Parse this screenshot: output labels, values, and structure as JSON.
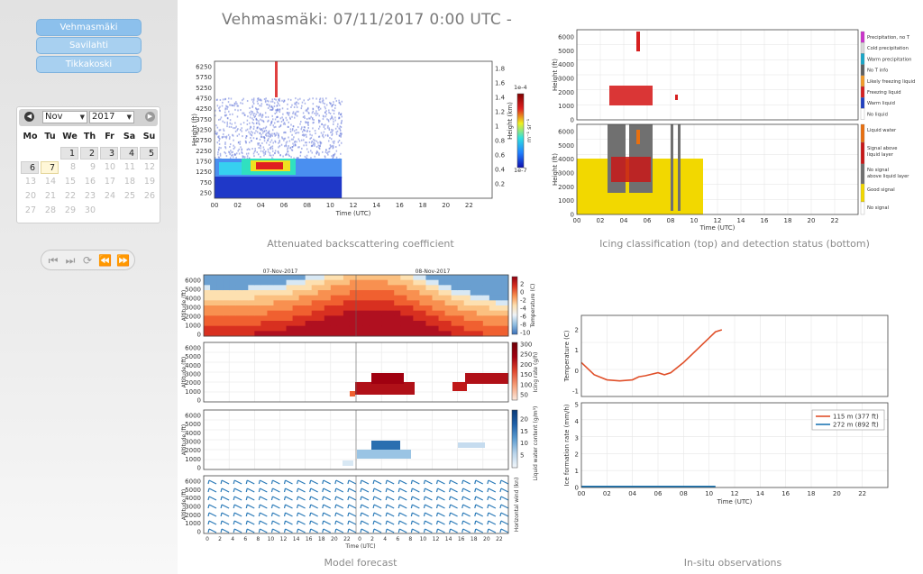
{
  "sidebar": {
    "sites": [
      {
        "label": "Vehmasmäki"
      },
      {
        "label": "Savilahti"
      },
      {
        "label": "Tikkakoski"
      }
    ],
    "calendar": {
      "month": "Nov",
      "year": "2017",
      "weekdays": [
        "Mo",
        "Tu",
        "We",
        "Th",
        "Fr",
        "Sa",
        "Su"
      ],
      "weeks": [
        [
          "",
          "",
          "1",
          "2",
          "3",
          "4",
          "5"
        ],
        [
          "6",
          "7",
          "8",
          "9",
          "10",
          "11",
          "12"
        ],
        [
          "13",
          "14",
          "15",
          "16",
          "17",
          "18",
          "19"
        ],
        [
          "20",
          "21",
          "22",
          "23",
          "24",
          "25",
          "26"
        ],
        [
          "27",
          "28",
          "29",
          "30",
          "",
          "",
          ""
        ]
      ],
      "selected_day": "6",
      "today": "7"
    },
    "controls": [
      "first-icon",
      "next-icon",
      "refresh-icon",
      "rewind-icon",
      "fast-forward-icon"
    ]
  },
  "page": {
    "title": "Vehmasmäki: 07/11/2017 0:00 UTC -"
  },
  "panels": {
    "backscatter": {
      "caption": "Attenuated backscattering coefficient",
      "yticks": [
        "6250",
        "5750",
        "5250",
        "4750",
        "4250",
        "3750",
        "3250",
        "2750",
        "2250",
        "1750",
        "1250",
        "750",
        "250"
      ],
      "ylabel": "Height (ft)",
      "y2ticks": [
        "1.8",
        "1.6",
        "1.4",
        "1.2",
        "1",
        "0.8",
        "0.6",
        "0.4",
        "0.2"
      ],
      "y2label": "Height (km)",
      "xticks": [
        "00",
        "02",
        "04",
        "06",
        "08",
        "10",
        "12",
        "14",
        "16",
        "18",
        "20",
        "22"
      ],
      "xlabel": "Time (UTC)",
      "cb_top": "1e-4",
      "cb_bottom": "1e-7",
      "cb_label": "m⁻¹ sr⁻¹"
    },
    "icing": {
      "caption": "Icing classification (top) and detection status (bottom)",
      "top_yticks": [
        "6000",
        "5000",
        "4000",
        "3000",
        "2000",
        "1000",
        "0"
      ],
      "bottom_yticks": [
        "6000",
        "5000",
        "4000",
        "3000",
        "2000",
        "1000",
        "0"
      ],
      "ylabel": "Height (ft)",
      "xticks": [
        "00",
        "02",
        "04",
        "06",
        "08",
        "10",
        "12",
        "14",
        "16",
        "18",
        "20",
        "22"
      ],
      "xlabel": "Time (UTC)",
      "top_legend": [
        {
          "label": "Precipitation, no T",
          "color": "#cc33cc"
        },
        {
          "label": "Cold precipitation",
          "color": "#d8d8d8"
        },
        {
          "label": "Warm precipitation",
          "color": "#1aa7c8"
        },
        {
          "label": "No T info",
          "color": "#606060"
        },
        {
          "label": "Likely freezing liquid",
          "color": "#f39c2a"
        },
        {
          "label": "Freezing liquid",
          "color": "#d62020"
        },
        {
          "label": "Warm liquid",
          "color": "#2040c0"
        },
        {
          "label": "No liquid",
          "color": "#ffffff"
        }
      ],
      "bottom_legend": [
        {
          "label": "Liquid water",
          "color": "#e87010"
        },
        {
          "label": "Signal above liquid layer",
          "color": "#c81818"
        },
        {
          "label": "No signal above liquid layer",
          "color": "#707070"
        },
        {
          "label": "Good signal",
          "color": "#f2d800"
        },
        {
          "label": "No signal",
          "color": "#ffffff"
        }
      ]
    },
    "forecast": {
      "caption": "Model forecast",
      "dates": [
        "07-Nov-2017",
        "08-Nov-2017"
      ],
      "yticks": [
        "6000",
        "5000",
        "4000",
        "3000",
        "2000",
        "1000",
        "0"
      ],
      "ylabel": "Altitude (ft)",
      "xticks": [
        "0",
        "2",
        "4",
        "6",
        "8",
        "10",
        "12",
        "14",
        "16",
        "18",
        "20",
        "22",
        "0",
        "2",
        "4",
        "6",
        "8",
        "10",
        "12",
        "14",
        "16",
        "18",
        "20",
        "22"
      ],
      "xlabel": "Time (UTC)",
      "temp": {
        "ticks": [
          "2",
          "0",
          "-2",
          "-4",
          "-6",
          "-8",
          "-10"
        ],
        "label": "Temperature (C)"
      },
      "icing": {
        "ticks": [
          "300",
          "250",
          "200",
          "150",
          "100",
          "50"
        ],
        "label": "Icing rate (g/h)"
      },
      "lwc": {
        "ticks": [
          "20",
          "15",
          "10",
          "5"
        ],
        "label": "Liquid water content (g/m³)"
      },
      "wind": {
        "label": "Horizontal wind (kn)"
      }
    },
    "insitu": {
      "caption": "In-situ observations",
      "temp_yticks": [
        "2",
        "1",
        "0",
        "-1"
      ],
      "temp_ylabel": "Temperature (C)",
      "ice_yticks": [
        "5",
        "4",
        "3",
        "2",
        "1",
        "0"
      ],
      "ice_ylabel": "Ice formation rate (mm/h)",
      "xticks": [
        "00",
        "02",
        "04",
        "06",
        "08",
        "10",
        "12",
        "14",
        "16",
        "18",
        "20",
        "22"
      ],
      "xlabel": "Time (UTC)",
      "legend": [
        {
          "label": "115 m (377 ft)",
          "color": "#e0502a"
        },
        {
          "label": "272 m (892 ft)",
          "color": "#1f77b4"
        }
      ]
    }
  }
}
